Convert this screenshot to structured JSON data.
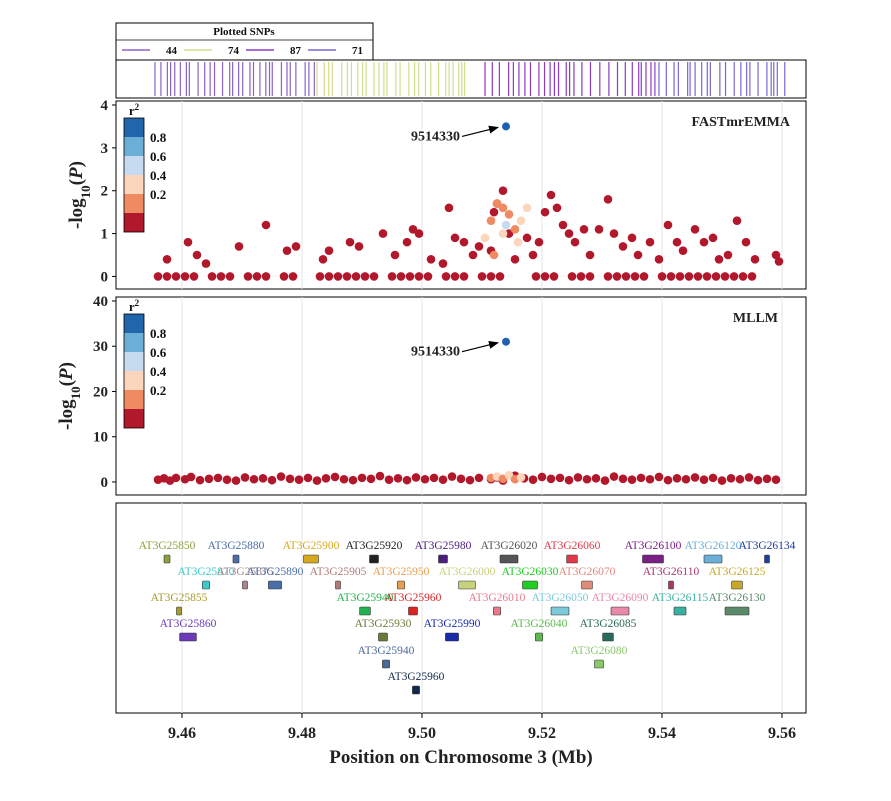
{
  "chart_data": {
    "type": "scatter",
    "xlabel": "Position on Chromosome 3 (Mb)",
    "x_ticks": [
      9.46,
      9.48,
      9.5,
      9.52,
      9.54,
      9.56
    ],
    "xlim": [
      9.449,
      9.564
    ],
    "legend_strip": {
      "title": "Plotted SNPs",
      "entries": [
        {
          "count": "44",
          "color": "#8a62c8"
        },
        {
          "count": "74",
          "color": "#d4dd8c"
        },
        {
          "count": "87",
          "color": "#8e3bc4"
        },
        {
          "count": "71",
          "color": "#7a66d6"
        }
      ]
    },
    "r2_legend": {
      "title": "r",
      "title_sup": "2",
      "labels": [
        "0.8",
        "0.6",
        "0.4",
        "0.2"
      ],
      "colors": [
        "#2166ac",
        "#6baed6",
        "#c6dbef",
        "#fcd5bd",
        "#ef8a62",
        "#b2182b"
      ]
    },
    "panels": [
      {
        "name": "FASTmrEMMA",
        "ylabel": "-log10(P)",
        "ylim": [
          -0.2,
          4
        ],
        "yticks": [
          "0",
          "1",
          "2",
          "3",
          "4"
        ],
        "lead_snp": {
          "label": "9514330",
          "x": 9.514,
          "y": 3.5
        },
        "points": [
          [
            9.456,
            0
          ],
          [
            9.4575,
            0
          ],
          [
            9.459,
            0
          ],
          [
            9.4605,
            0
          ],
          [
            9.462,
            0
          ],
          [
            9.465,
            0
          ],
          [
            9.4665,
            0
          ],
          [
            9.468,
            0
          ],
          [
            9.471,
            0
          ],
          [
            9.4725,
            0
          ],
          [
            9.474,
            0
          ],
          [
            9.477,
            0
          ],
          [
            9.4785,
            0
          ],
          [
            9.483,
            0
          ],
          [
            9.4845,
            0
          ],
          [
            9.486,
            0
          ],
          [
            9.4875,
            0
          ],
          [
            9.489,
            0
          ],
          [
            9.4905,
            0
          ],
          [
            9.492,
            0
          ],
          [
            9.495,
            0
          ],
          [
            9.4965,
            0
          ],
          [
            9.498,
            0
          ],
          [
            9.4995,
            0
          ],
          [
            9.501,
            0
          ],
          [
            9.504,
            0
          ],
          [
            9.5055,
            0
          ],
          [
            9.507,
            0
          ],
          [
            9.51,
            0
          ],
          [
            9.5115,
            0
          ],
          [
            9.513,
            0
          ],
          [
            9.519,
            0
          ],
          [
            9.5205,
            0
          ],
          [
            9.522,
            0
          ],
          [
            9.525,
            0
          ],
          [
            9.5265,
            0
          ],
          [
            9.528,
            0
          ],
          [
            9.531,
            0
          ],
          [
            9.5325,
            0
          ],
          [
            9.534,
            0
          ],
          [
            9.5355,
            0
          ],
          [
            9.537,
            0
          ],
          [
            9.54,
            0
          ],
          [
            9.5415,
            0
          ],
          [
            9.543,
            0
          ],
          [
            9.5445,
            0
          ],
          [
            9.546,
            0
          ],
          [
            9.5475,
            0
          ],
          [
            9.549,
            0
          ],
          [
            9.5505,
            0
          ],
          [
            9.552,
            0
          ],
          [
            9.5535,
            0
          ],
          [
            9.555,
            0
          ],
          [
            9.4575,
            0.4
          ],
          [
            9.461,
            0.8
          ],
          [
            9.4625,
            0.5
          ],
          [
            9.464,
            0.3
          ],
          [
            9.4695,
            0.7
          ],
          [
            9.474,
            1.2
          ],
          [
            9.4775,
            0.6
          ],
          [
            9.479,
            0.7
          ],
          [
            9.4835,
            0.4
          ],
          [
            9.4845,
            0.6
          ],
          [
            9.488,
            0.8
          ],
          [
            9.4895,
            0.7
          ],
          [
            9.4935,
            1.0
          ],
          [
            9.4955,
            0.5
          ],
          [
            9.4975,
            0.8
          ],
          [
            9.4985,
            1.1
          ],
          [
            9.4995,
            1.0
          ],
          [
            9.5015,
            0.4
          ],
          [
            9.5035,
            0.3
          ],
          [
            9.5045,
            1.6
          ],
          [
            9.5055,
            0.9
          ],
          [
            9.507,
            0.8
          ],
          [
            9.5085,
            0.5
          ],
          [
            9.5095,
            0.7
          ],
          [
            9.5115,
            0.6
          ],
          [
            9.512,
            1.5
          ],
          [
            9.5125,
            1.7
          ],
          [
            9.5135,
            2.0
          ],
          [
            9.5145,
            1.0
          ],
          [
            9.5155,
            0.4
          ],
          [
            9.5175,
            0.9
          ],
          [
            9.5185,
            0.5
          ],
          [
            9.5195,
            0.8
          ],
          [
            9.5205,
            1.5
          ],
          [
            9.5215,
            1.9
          ],
          [
            9.5225,
            1.6
          ],
          [
            9.5235,
            1.2
          ],
          [
            9.5245,
            1.0
          ],
          [
            9.5255,
            0.8
          ],
          [
            9.527,
            1.1
          ],
          [
            9.528,
            0.5
          ],
          [
            9.5295,
            1.1
          ],
          [
            9.531,
            1.8
          ],
          [
            9.532,
            1.0
          ],
          [
            9.5335,
            0.7
          ],
          [
            9.535,
            0.9
          ],
          [
            9.536,
            0.5
          ],
          [
            9.538,
            0.8
          ],
          [
            9.5395,
            0.4
          ],
          [
            9.541,
            1.2
          ],
          [
            9.5425,
            0.8
          ],
          [
            9.5435,
            0.6
          ],
          [
            9.5455,
            1.1
          ],
          [
            9.547,
            0.8
          ],
          [
            9.5485,
            0.9
          ],
          [
            9.5495,
            0.4
          ],
          [
            9.551,
            0.5
          ],
          [
            9.5525,
            1.3
          ],
          [
            9.554,
            0.8
          ],
          [
            9.5555,
            0.4
          ],
          [
            9.559,
            0.5
          ],
          [
            9.5595,
            0.35
          ]
        ],
        "ld_points": [
          [
            9.5105,
            0.9,
            3
          ],
          [
            9.5115,
            1.3,
            4
          ],
          [
            9.5125,
            1.7,
            4
          ],
          [
            9.5135,
            1.0,
            3
          ],
          [
            9.5135,
            1.6,
            4
          ],
          [
            9.5145,
            1.45,
            4
          ],
          [
            9.5155,
            1.1,
            4
          ],
          [
            9.516,
            0.8,
            3
          ],
          [
            9.514,
            1.2,
            2
          ],
          [
            9.512,
            0.5,
            4
          ],
          [
            9.5165,
            1.3,
            3
          ],
          [
            9.5175,
            1.6,
            3
          ]
        ]
      },
      {
        "name": "MLLM",
        "ylabel": "-log10(P)",
        "ylim": [
          -2,
          40
        ],
        "yticks": [
          "0",
          "10",
          "20",
          "30",
          "40"
        ],
        "lead_snp": {
          "label": "9514330",
          "x": 9.514,
          "y": 31
        },
        "points": [
          [
            9.456,
            0.5
          ],
          [
            9.457,
            0.8
          ],
          [
            9.458,
            0.3
          ],
          [
            9.459,
            0.9
          ],
          [
            9.4605,
            0.6
          ],
          [
            9.4615,
            1.1
          ],
          [
            9.463,
            0.4
          ],
          [
            9.4645,
            0.7
          ],
          [
            9.466,
            0.9
          ],
          [
            9.4675,
            0.5
          ],
          [
            9.469,
            0.3
          ],
          [
            9.4705,
            1.0
          ],
          [
            9.472,
            0.6
          ],
          [
            9.4735,
            0.8
          ],
          [
            9.475,
            0.4
          ],
          [
            9.4765,
            1.2
          ],
          [
            9.478,
            0.7
          ],
          [
            9.4795,
            0.5
          ],
          [
            9.481,
            0.9
          ],
          [
            9.4825,
            0.3
          ],
          [
            9.484,
            0.8
          ],
          [
            9.4855,
            1.1
          ],
          [
            9.487,
            0.6
          ],
          [
            9.4885,
            0.4
          ],
          [
            9.49,
            0.9
          ],
          [
            9.4915,
            0.7
          ],
          [
            9.493,
            1.3
          ],
          [
            9.4945,
            0.5
          ],
          [
            9.496,
            0.8
          ],
          [
            9.4975,
            0.4
          ],
          [
            9.499,
            1.0
          ],
          [
            9.5005,
            0.6
          ],
          [
            9.502,
            0.9
          ],
          [
            9.5035,
            0.5
          ],
          [
            9.505,
            1.2
          ],
          [
            9.5065,
            0.7
          ],
          [
            9.508,
            0.4
          ],
          [
            9.5095,
            0.9
          ],
          [
            9.5115,
            0.6
          ],
          [
            9.5125,
            1.0
          ],
          [
            9.5135,
            0.3
          ],
          [
            9.5155,
            1.4
          ],
          [
            9.517,
            0.8
          ],
          [
            9.5185,
            0.5
          ],
          [
            9.52,
            1.1
          ],
          [
            9.5215,
            0.7
          ],
          [
            9.523,
            0.9
          ],
          [
            9.5245,
            0.4
          ],
          [
            9.526,
            1.0
          ],
          [
            9.5275,
            0.6
          ],
          [
            9.529,
            0.8
          ],
          [
            9.5305,
            0.3
          ],
          [
            9.532,
            1.2
          ],
          [
            9.5335,
            0.7
          ],
          [
            9.535,
            0.5
          ],
          [
            9.5365,
            0.9
          ],
          [
            9.538,
            0.6
          ],
          [
            9.5395,
            1.1
          ],
          [
            9.541,
            0.4
          ],
          [
            9.5425,
            0.8
          ],
          [
            9.544,
            0.6
          ],
          [
            9.5455,
            1.0
          ],
          [
            9.547,
            0.5
          ],
          [
            9.5485,
            0.9
          ],
          [
            9.55,
            0.3
          ],
          [
            9.5515,
            0.8
          ],
          [
            9.553,
            0.6
          ],
          [
            9.5545,
            1.0
          ],
          [
            9.556,
            0.4
          ],
          [
            9.5575,
            0.7
          ],
          [
            9.559,
            0.5
          ]
        ],
        "ld_points": [
          [
            9.5115,
            0.9,
            4
          ],
          [
            9.5125,
            1.2,
            3
          ],
          [
            9.5135,
            0.7,
            4
          ],
          [
            9.5145,
            1.5,
            3
          ],
          [
            9.5155,
            0.6,
            4
          ],
          [
            9.5165,
            1.0,
            3
          ]
        ]
      }
    ],
    "genes": [
      {
        "name": "AT3G25850",
        "color": "#8aa23a",
        "x": 9.4575,
        "row": 0,
        "w": 0.001
      },
      {
        "name": "AT3G25880",
        "color": "#4a6fa8",
        "x": 9.469,
        "row": 0,
        "w": 0.001
      },
      {
        "name": "AT3G25900",
        "color": "#d7a81e",
        "x": 9.4815,
        "row": 0,
        "w": 0.0025
      },
      {
        "name": "AT3G25920",
        "color": "#222222",
        "x": 9.492,
        "row": 0,
        "w": 0.0015
      },
      {
        "name": "AT3G25980",
        "color": "#4b1e7e",
        "x": 9.5035,
        "row": 0,
        "w": 0.0015
      },
      {
        "name": "AT3G26020",
        "color": "#555555",
        "x": 9.5145,
        "row": 0,
        "w": 0.003
      },
      {
        "name": "AT3G26060",
        "color": "#e03a4a",
        "x": 9.525,
        "row": 0,
        "w": 0.0018
      },
      {
        "name": "AT3G26100",
        "color": "#7a1f84",
        "x": 9.5385,
        "row": 0,
        "w": 0.0035
      },
      {
        "name": "AT3G26120",
        "color": "#6baed6",
        "x": 9.5485,
        "row": 0,
        "w": 0.003
      },
      {
        "name": "AT3G26134",
        "color": "#1f3f9e",
        "x": 9.5575,
        "row": 0,
        "w": 0.0006
      },
      {
        "name": "AT3G25870",
        "color": "#3ec9c9",
        "x": 9.464,
        "row": 1,
        "w": 0.0012
      },
      {
        "name": "AT3G25875",
        "color": "#aa8888",
        "x": 9.4705,
        "row": 1,
        "w": 0.0008
      },
      {
        "name": "AT3G25890",
        "color": "#4a6fa8",
        "x": 9.4755,
        "row": 1,
        "w": 0.0022
      },
      {
        "name": "AT3G25905",
        "color": "#b07a7a",
        "x": 9.486,
        "row": 1,
        "w": 0.0008
      },
      {
        "name": "AT3G25950",
        "color": "#e8a050",
        "x": 9.4965,
        "row": 1,
        "w": 0.0012
      },
      {
        "name": "AT3G26000",
        "color": "#c8d27a",
        "x": 9.5075,
        "row": 1,
        "w": 0.0028
      },
      {
        "name": "AT3G26030",
        "color": "#22cc22",
        "x": 9.518,
        "row": 1,
        "w": 0.0025
      },
      {
        "name": "AT3G26070",
        "color": "#e08a7a",
        "x": 9.5275,
        "row": 1,
        "w": 0.0018
      },
      {
        "name": "AT3G26110",
        "color": "#aa3a6a",
        "x": 9.5415,
        "row": 1,
        "w": 0.0006
      },
      {
        "name": "AT3G26125",
        "color": "#c8a82a",
        "x": 9.5525,
        "row": 1,
        "w": 0.0018
      },
      {
        "name": "AT3G25855",
        "color": "#a89a2a",
        "x": 9.4595,
        "row": 2,
        "w": 0.0008
      },
      {
        "name": "AT3G25940",
        "color": "#22b050",
        "x": 9.4905,
        "row": 2,
        "w": 0.0018
      },
      {
        "name": "AT3G25960",
        "color": "#dd2222",
        "x": 9.4985,
        "row": 2,
        "w": 0.0015
      },
      {
        "name": "AT3G26010",
        "color": "#e87a8a",
        "x": 9.5125,
        "row": 2,
        "w": 0.0012
      },
      {
        "name": "AT3G26050",
        "color": "#7acad8",
        "x": 9.523,
        "row": 2,
        "w": 0.003
      },
      {
        "name": "AT3G26090",
        "color": "#e88aa8",
        "x": 9.533,
        "row": 2,
        "w": 0.003
      },
      {
        "name": "AT3G26115",
        "color": "#3ab0a0",
        "x": 9.543,
        "row": 2,
        "w": 0.002
      },
      {
        "name": "AT3G26130",
        "color": "#5a8a6a",
        "x": 9.5525,
        "row": 2,
        "w": 0.004
      },
      {
        "name": "AT3G25860",
        "color": "#6a3ab8",
        "x": 9.461,
        "row": 3,
        "w": 0.0028
      },
      {
        "name": "AT3G25930",
        "color": "#6a7a3a",
        "x": 9.4935,
        "row": 3,
        "w": 0.0015
      },
      {
        "name": "AT3G25990",
        "color": "#1a2aa8",
        "x": 9.505,
        "row": 3,
        "w": 0.0022
      },
      {
        "name": "AT3G26040",
        "color": "#5aba4a",
        "x": 9.5195,
        "row": 3,
        "w": 0.0012
      },
      {
        "name": "AT3G26085",
        "color": "#2a6a5a",
        "x": 9.531,
        "row": 3,
        "w": 0.0018
      },
      {
        "name": "AT3G25940",
        "color": "#4a6a9a",
        "x": 9.494,
        "row": 4,
        "w": 0.0012
      },
      {
        "name": "AT3G26080",
        "color": "#8ac86a",
        "x": 9.5295,
        "row": 4,
        "w": 0.0015
      },
      {
        "name": "AT3G25960",
        "color": "#13294b",
        "x": 9.499,
        "row": 5,
        "w": 0.0012
      }
    ]
  }
}
